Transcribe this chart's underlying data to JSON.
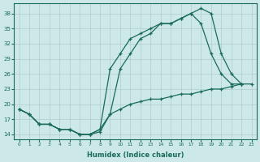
{
  "xlabel": "Humidex (Indice chaleur)",
  "bg_color": "#cce8e8",
  "grid_color": "#b0cccc",
  "line_color": "#1a6b5a",
  "xlim": [
    -0.5,
    23.5
  ],
  "ylim": [
    13,
    40
  ],
  "yticks": [
    14,
    17,
    20,
    23,
    26,
    29,
    32,
    35,
    38
  ],
  "xticks": [
    0,
    1,
    2,
    3,
    4,
    5,
    6,
    7,
    8,
    9,
    10,
    11,
    12,
    13,
    14,
    15,
    16,
    17,
    18,
    19,
    20,
    21,
    22,
    23
  ],
  "line1_x": [
    0,
    1,
    2,
    3,
    4,
    5,
    6,
    7,
    8,
    9,
    10,
    11,
    12,
    13,
    14,
    15,
    16,
    17,
    18,
    19,
    20,
    21,
    22
  ],
  "line1_y": [
    19,
    18,
    16,
    16,
    15,
    15,
    14,
    14,
    15,
    18,
    27,
    30,
    33,
    34,
    36,
    36,
    37,
    38,
    39,
    38,
    30,
    26,
    24
  ],
  "line2_x": [
    0,
    1,
    2,
    3,
    4,
    5,
    6,
    7,
    8,
    9,
    10,
    11,
    12,
    13,
    14,
    15,
    16,
    17,
    18,
    19,
    20,
    21,
    22
  ],
  "line2_y": [
    19,
    18,
    16,
    16,
    15,
    15,
    14,
    14,
    15,
    27,
    30,
    33,
    34,
    35,
    36,
    36,
    37,
    38,
    36,
    30,
    26,
    24,
    24
  ],
  "line3_x": [
    0,
    1,
    2,
    3,
    4,
    5,
    6,
    7,
    8,
    9,
    10,
    11,
    12,
    13,
    14,
    15,
    16,
    17,
    18,
    19,
    20,
    21,
    22,
    23
  ],
  "line3_y": [
    19,
    18,
    16,
    16,
    15,
    15,
    14,
    14,
    14.5,
    18,
    19,
    20,
    20.5,
    21,
    21,
    21.5,
    22,
    22,
    22.5,
    23,
    23,
    23.5,
    24,
    24
  ]
}
